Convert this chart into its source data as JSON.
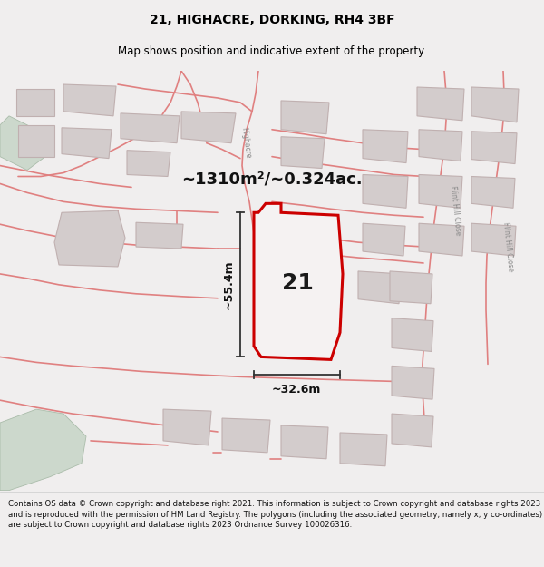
{
  "title": "21, HIGHACRE, DORKING, RH4 3BF",
  "subtitle": "Map shows position and indicative extent of the property.",
  "footer": "Contains OS data © Crown copyright and database right 2021. This information is subject to Crown copyright and database rights 2023 and is reproduced with the permission of HM Land Registry. The polygons (including the associated geometry, namely x, y co-ordinates) are subject to Crown copyright and database rights 2023 Ordnance Survey 100026316.",
  "area_label": "~1310m²/~0.324ac.",
  "plot_number": "21",
  "width_label": "~32.6m",
  "height_label": "~55.4m",
  "bg_color": "#f0eeee",
  "map_bg": "#f5f2f2",
  "plot_fill": "#f5f2f2",
  "plot_edge": "#cc0000",
  "road_color": "#e08080",
  "building_fill": "#d3cccc",
  "building_edge": "#c0b0b0",
  "green_fill": "#ccd8cc",
  "green_edge": "#aabcaa",
  "title_fontsize": 10,
  "subtitle_fontsize": 8.5,
  "footer_fontsize": 6.2,
  "area_fontsize": 13,
  "dim_fontsize": 9,
  "plot_num_fontsize": 18
}
